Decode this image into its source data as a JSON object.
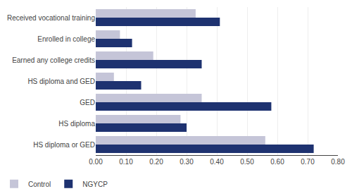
{
  "chart_data": {
    "type": "bar",
    "orientation": "horizontal",
    "categories": [
      "Received vocational training",
      "Enrolled in college",
      "Earned any college credits",
      "HS diploma and GED",
      "GED",
      "HS diploma",
      "HS diploma or GED"
    ],
    "series": [
      {
        "name": "Control",
        "color": "#c5c5d8",
        "values": [
          0.33,
          0.08,
          0.19,
          0.06,
          0.35,
          0.28,
          0.56
        ]
      },
      {
        "name": "NGYCP",
        "color": "#1e3270",
        "values": [
          0.41,
          0.12,
          0.35,
          0.15,
          0.58,
          0.3,
          0.72
        ]
      }
    ],
    "xlim": [
      0.0,
      0.8
    ],
    "xticks": [
      {
        "value": 0.0,
        "label": "0.00"
      },
      {
        "value": 0.1,
        "label": "0.10"
      },
      {
        "value": 0.2,
        "label": "0.20"
      },
      {
        "value": 0.3,
        "label": "0.30"
      },
      {
        "value": 0.4,
        "label": "0.40"
      },
      {
        "value": 0.5,
        "label": "0.50"
      },
      {
        "value": 0.6,
        "label": "0.60"
      },
      {
        "value": 0.7,
        "label": "0.70"
      },
      {
        "value": 0.8,
        "label": "0.80"
      }
    ],
    "grid": true,
    "legend": "lower left"
  }
}
